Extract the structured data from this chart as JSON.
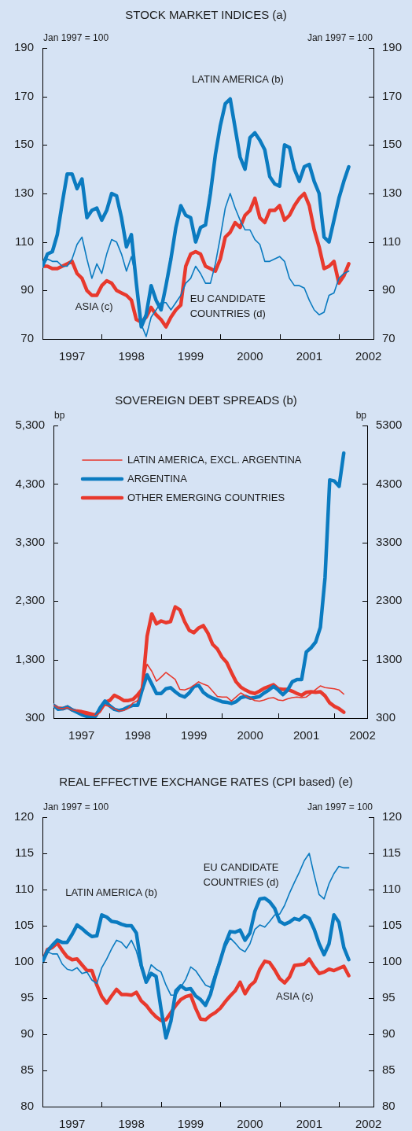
{
  "chart_data": [
    {
      "type": "line",
      "title": "STOCK MARKET INDICES (a)",
      "ylabel": "Jan 1997 = 100",
      "y2label": "Jan 1997 = 100",
      "x": [
        "1997-01",
        "1997-02",
        "1997-03",
        "1997-04",
        "1997-05",
        "1997-06",
        "1997-07",
        "1997-08",
        "1997-09",
        "1997-10",
        "1997-11",
        "1997-12",
        "1998-01",
        "1998-02",
        "1998-03",
        "1998-04",
        "1998-05",
        "1998-06",
        "1998-07",
        "1998-08",
        "1998-09",
        "1998-10",
        "1998-11",
        "1998-12",
        "1999-01",
        "1999-02",
        "1999-03",
        "1999-04",
        "1999-05",
        "1999-06",
        "1999-07",
        "1999-08",
        "1999-09",
        "1999-10",
        "1999-11",
        "1999-12",
        "2000-01",
        "2000-02",
        "2000-03",
        "2000-04",
        "2000-05",
        "2000-06",
        "2000-07",
        "2000-08",
        "2000-09",
        "2000-10",
        "2000-11",
        "2000-12",
        "2001-01",
        "2001-02",
        "2001-03",
        "2001-04",
        "2001-05",
        "2001-06",
        "2001-07",
        "2001-08",
        "2001-09",
        "2001-10",
        "2001-11",
        "2001-12",
        "2002-01",
        "2002-02",
        "2002-03"
      ],
      "xlim": [
        "1997-01",
        "2002-08"
      ],
      "xticks": [
        {
          "value": "1997-07",
          "label": "1997"
        },
        {
          "value": "1998-01",
          "label": null
        },
        {
          "value": "1998-07",
          "label": "1998"
        },
        {
          "value": "1999-01",
          "label": null
        },
        {
          "value": "1999-07",
          "label": "1999"
        },
        {
          "value": "2000-01",
          "label": null
        },
        {
          "value": "2000-07",
          "label": "2000"
        },
        {
          "value": "2001-01",
          "label": null
        },
        {
          "value": "2001-07",
          "label": "2001"
        },
        {
          "value": "2002-01",
          "label": null
        },
        {
          "value": "2002-07",
          "label": "2002"
        }
      ],
      "ylim": [
        70,
        190
      ],
      "yticks": [
        70,
        90,
        110,
        130,
        150,
        170,
        190
      ],
      "y2lim": [
        70,
        190
      ],
      "y2ticks": [
        70,
        90,
        110,
        130,
        150,
        170,
        190
      ],
      "series": [
        {
          "name": "LATIN AMERICA (b)",
          "color": "#0b7bc0",
          "values": [
            100,
            105,
            106,
            113,
            126,
            138,
            138,
            132,
            136,
            120,
            123,
            124,
            119,
            123,
            130,
            129,
            120,
            108,
            113,
            93,
            75,
            80,
            92,
            86,
            82,
            92,
            103,
            116,
            125,
            121,
            120,
            110,
            116,
            117,
            130,
            146,
            158,
            167,
            169,
            157,
            145,
            140,
            153,
            155,
            152,
            148,
            137,
            134,
            133,
            150,
            149,
            140,
            135,
            141,
            142,
            135,
            130,
            112,
            110,
            119,
            128,
            135,
            141
          ]
        },
        {
          "name": "EU CANDIDATE COUNTRIES (d)",
          "color": "#0b7bc0",
          "values": [
            100,
            103,
            102,
            102,
            100,
            100,
            103,
            109,
            112,
            103,
            95,
            101,
            97,
            105,
            111,
            110,
            105,
            98,
            104,
            95,
            76,
            71,
            79,
            82,
            85,
            85,
            82,
            85,
            88,
            93,
            95,
            100,
            97,
            93,
            93,
            101,
            112,
            124,
            130,
            124,
            119,
            115,
            115,
            111,
            109,
            102,
            102,
            103,
            104,
            102,
            95,
            92,
            92,
            91,
            86,
            82,
            80,
            81,
            88,
            89,
            95,
            97,
            98
          ]
        },
        {
          "name": "ASIA (c)",
          "color": "#e8392d",
          "values": [
            100,
            100,
            99,
            99,
            100,
            101,
            102,
            97,
            95,
            90,
            88,
            88,
            92,
            94,
            93,
            90,
            89,
            88,
            86,
            78,
            77,
            79,
            83,
            80,
            78,
            75,
            79,
            82,
            84,
            100,
            105,
            106,
            105,
            100,
            99,
            98,
            103,
            112,
            114,
            118,
            116,
            121,
            123,
            128,
            120,
            118,
            123,
            123,
            125,
            119,
            121,
            125,
            128,
            130,
            125,
            115,
            108,
            99,
            100,
            102,
            93,
            96,
            101
          ]
        }
      ]
    },
    {
      "type": "line",
      "title": "SOVEREIGN DEBT SPREADS (b)",
      "ylabel": "bp",
      "y2label": "bp",
      "legend": "top left",
      "x": [
        "1997-01",
        "1997-02",
        "1997-03",
        "1997-04",
        "1997-05",
        "1997-06",
        "1997-07",
        "1997-08",
        "1997-09",
        "1997-10",
        "1997-11",
        "1997-12",
        "1998-01",
        "1998-02",
        "1998-03",
        "1998-04",
        "1998-05",
        "1998-06",
        "1998-07",
        "1998-08",
        "1998-09",
        "1998-10",
        "1998-11",
        "1998-12",
        "1999-01",
        "1999-02",
        "1999-03",
        "1999-04",
        "1999-05",
        "1999-06",
        "1999-07",
        "1999-08",
        "1999-09",
        "1999-10",
        "1999-11",
        "1999-12",
        "2000-01",
        "2000-02",
        "2000-03",
        "2000-04",
        "2000-05",
        "2000-06",
        "2000-07",
        "2000-08",
        "2000-09",
        "2000-10",
        "2000-11",
        "2000-12",
        "2001-01",
        "2001-02",
        "2001-03",
        "2001-04",
        "2001-05",
        "2001-06",
        "2001-07",
        "2001-08",
        "2001-09",
        "2001-10",
        "2001-11",
        "2001-12",
        "2002-01",
        "2002-02",
        "2002-03"
      ],
      "xlim": [
        "1997-01",
        "2002-08"
      ],
      "xticks": [
        {
          "value": "1997-07",
          "label": "1997"
        },
        {
          "value": "1998-01",
          "label": null
        },
        {
          "value": "1998-07",
          "label": "1998"
        },
        {
          "value": "1999-01",
          "label": null
        },
        {
          "value": "1999-07",
          "label": "1999"
        },
        {
          "value": "2000-01",
          "label": null
        },
        {
          "value": "2000-07",
          "label": "2000"
        },
        {
          "value": "2001-01",
          "label": null
        },
        {
          "value": "2001-07",
          "label": "2001"
        },
        {
          "value": "2002-01",
          "label": null
        },
        {
          "value": "2002-07",
          "label": "2002"
        }
      ],
      "ylim": [
        300,
        5300
      ],
      "yticks": [
        {
          "value": 300,
          "label": "300"
        },
        {
          "value": 1300,
          "label": "1,300"
        },
        {
          "value": 2300,
          "label": "2,300"
        },
        {
          "value": 3300,
          "label": "3,300"
        },
        {
          "value": 4300,
          "label": "4,300"
        },
        {
          "value": 5300,
          "label": "5,300"
        }
      ],
      "y2lim": [
        300,
        5300
      ],
      "y2ticks": [
        300,
        1300,
        2300,
        3300,
        4300,
        5300
      ],
      "series": [
        {
          "name": "LATIN AMERICA, EXCL. ARGENTINA",
          "color": "#e8392d",
          "values": [
            520,
            470,
            460,
            480,
            440,
            420,
            390,
            360,
            350,
            340,
            400,
            520,
            500,
            460,
            420,
            430,
            470,
            560,
            600,
            900,
            1220,
            1100,
            930,
            1000,
            1080,
            1020,
            960,
            790,
            780,
            810,
            860,
            920,
            880,
            850,
            760,
            670,
            660,
            660,
            590,
            660,
            730,
            680,
            640,
            600,
            590,
            610,
            640,
            650,
            610,
            600,
            630,
            650,
            660,
            650,
            660,
            720,
            790,
            850,
            820,
            810,
            800,
            780,
            710
          ]
        },
        {
          "name": "ARGENTINA",
          "color": "#0b7bc0",
          "values": [
            520,
            450,
            460,
            490,
            440,
            400,
            360,
            330,
            310,
            330,
            480,
            590,
            510,
            450,
            430,
            450,
            490,
            520,
            520,
            800,
            1040,
            880,
            720,
            720,
            800,
            820,
            750,
            690,
            660,
            730,
            840,
            860,
            740,
            680,
            640,
            610,
            580,
            570,
            550,
            580,
            650,
            670,
            640,
            650,
            670,
            730,
            780,
            840,
            780,
            700,
            780,
            920,
            960,
            960,
            1430,
            1500,
            1600,
            1850,
            2700,
            4370,
            4350,
            4260,
            4830
          ]
        },
        {
          "name": "OTHER EMERGING COUNTRIES",
          "color": "#e8392d",
          "values": [
            520,
            470,
            460,
            490,
            440,
            420,
            410,
            390,
            370,
            350,
            450,
            570,
            600,
            690,
            650,
            600,
            600,
            620,
            700,
            800,
            1700,
            2080,
            1910,
            1960,
            1930,
            1950,
            2200,
            2150,
            1950,
            1800,
            1760,
            1840,
            1880,
            1750,
            1560,
            1480,
            1340,
            1250,
            1080,
            920,
            830,
            780,
            740,
            720,
            760,
            810,
            840,
            870,
            800,
            790,
            790,
            760,
            720,
            690,
            740,
            750,
            740,
            750,
            680,
            560,
            500,
            460,
            400
          ]
        }
      ]
    },
    {
      "type": "line",
      "title": "REAL EFFECTIVE EXCHANGE RATES (CPI based) (e)",
      "ylabel": "Jan 1997 = 100",
      "y2label": "Jan 1997 = 100",
      "x": [
        "1997-01",
        "1997-02",
        "1997-03",
        "1997-04",
        "1997-05",
        "1997-06",
        "1997-07",
        "1997-08",
        "1997-09",
        "1997-10",
        "1997-11",
        "1997-12",
        "1998-01",
        "1998-02",
        "1998-03",
        "1998-04",
        "1998-05",
        "1998-06",
        "1998-07",
        "1998-08",
        "1998-09",
        "1998-10",
        "1998-11",
        "1998-12",
        "1999-01",
        "1999-02",
        "1999-03",
        "1999-04",
        "1999-05",
        "1999-06",
        "1999-07",
        "1999-08",
        "1999-09",
        "1999-10",
        "1999-11",
        "1999-12",
        "2000-01",
        "2000-02",
        "2000-03",
        "2000-04",
        "2000-05",
        "2000-06",
        "2000-07",
        "2000-08",
        "2000-09",
        "2000-10",
        "2000-11",
        "2000-12",
        "2001-01",
        "2001-02",
        "2001-03",
        "2001-04",
        "2001-05",
        "2001-06",
        "2001-07",
        "2001-08",
        "2001-09",
        "2001-10",
        "2001-11",
        "2001-12",
        "2002-01",
        "2002-02",
        "2002-03"
      ],
      "xlim": [
        "1997-01",
        "2002-08"
      ],
      "xticks": [
        {
          "value": "1997-07",
          "label": "1997"
        },
        {
          "value": "1998-01",
          "label": null
        },
        {
          "value": "1998-07",
          "label": "1998"
        },
        {
          "value": "1999-01",
          "label": null
        },
        {
          "value": "1999-07",
          "label": "1999"
        },
        {
          "value": "2000-01",
          "label": null
        },
        {
          "value": "2000-07",
          "label": "2000"
        },
        {
          "value": "2001-01",
          "label": null
        },
        {
          "value": "2001-07",
          "label": "2001"
        },
        {
          "value": "2002-01",
          "label": null
        },
        {
          "value": "2002-07",
          "label": "2002"
        }
      ],
      "ylim": [
        80,
        120
      ],
      "yticks": [
        80,
        85,
        90,
        95,
        100,
        105,
        110,
        115,
        120
      ],
      "y2lim": [
        80,
        120
      ],
      "y2ticks": [
        80,
        85,
        90,
        95,
        100,
        105,
        110,
        115,
        120
      ],
      "series": [
        {
          "name": "LATIN AMERICA (b)",
          "color": "#0b7bc0",
          "values": [
            100,
            101.5,
            102.3,
            103,
            102.7,
            102.7,
            103.8,
            105.1,
            104.6,
            104,
            103.5,
            103.6,
            106.5,
            106.2,
            105.6,
            105.5,
            105.2,
            105,
            105,
            104,
            99.5,
            97.2,
            98.4,
            98,
            93.5,
            89.5,
            91.8,
            96,
            96.7,
            96.2,
            96.3,
            95.3,
            94.8,
            94,
            95.5,
            98,
            100.2,
            102.5,
            104.2,
            104.1,
            104.4,
            103,
            104,
            107,
            108.7,
            108.8,
            108.3,
            107.4,
            105.6,
            105.2,
            105.5,
            106,
            105.8,
            106.4,
            106,
            104.5,
            102.5,
            101,
            102.5,
            106.5,
            105.5,
            102,
            100.3
          ]
        },
        {
          "name": "EU CANDIDATE COUNTRIES (d)",
          "color": "#0b7bc0",
          "values": [
            100,
            101.4,
            101.1,
            101.1,
            99.7,
            99,
            98.8,
            99.2,
            98.4,
            98.6,
            97.5,
            97,
            99.2,
            100.4,
            101.8,
            103,
            102.7,
            101.9,
            103,
            101.5,
            99,
            97.5,
            99.6,
            99,
            98.6,
            96.8,
            95.4,
            95.4,
            96.5,
            97.6,
            99.3,
            98.8,
            97.8,
            96.8,
            96.5,
            98.6,
            100.5,
            102,
            103.3,
            102.6,
            101.8,
            101.4,
            102.5,
            104.5,
            105.1,
            104.8,
            105.6,
            106.5,
            106.6,
            107.8,
            109.5,
            111,
            112.4,
            114,
            115,
            112,
            109.3,
            108.7,
            110.8,
            112.2,
            113.2,
            113,
            113
          ]
        },
        {
          "name": "ASIA (c)",
          "color": "#e8392d",
          "values": [
            100,
            101.7,
            102,
            102.6,
            101.6,
            100.7,
            100.3,
            100.4,
            99.6,
            98.8,
            98.8,
            96.8,
            95.2,
            94.3,
            95.3,
            96.2,
            95.5,
            95.5,
            95.4,
            95.8,
            94.6,
            94,
            93.1,
            92.4,
            91.9,
            92,
            93,
            94,
            94.8,
            95.2,
            95.4,
            93.6,
            92.1,
            92,
            92.6,
            93,
            93.6,
            94.5,
            95.3,
            96,
            97.2,
            95.6,
            96.7,
            97.3,
            99,
            100.1,
            99.9,
            98.9,
            97.7,
            97.1,
            97.9,
            99.5,
            99.6,
            99.7,
            100.4,
            99.3,
            98.4,
            98.6,
            99,
            98.8,
            99.1,
            99.4,
            98.1
          ]
        }
      ]
    }
  ]
}
